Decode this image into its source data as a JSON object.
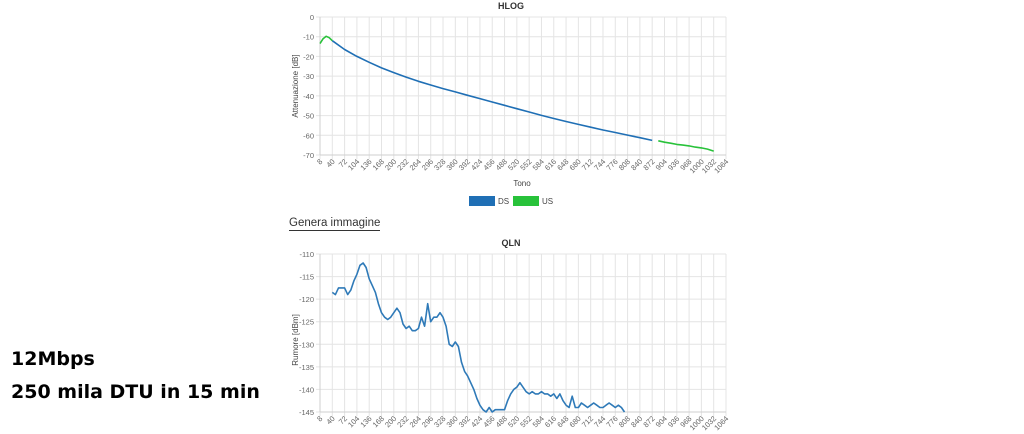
{
  "generate_link": "Genera immagine",
  "caption": {
    "line1": "12Mbps",
    "line2": "250 mila DTU in 15 min"
  },
  "chart_data": [
    {
      "type": "line",
      "title": "HLOG",
      "xlabel": "Tono",
      "ylabel": "Attenuazione [dB]",
      "xlim": [
        8,
        1064
      ],
      "ylim": [
        -70,
        0
      ],
      "x_ticks": [
        8,
        40,
        72,
        104,
        136,
        168,
        200,
        232,
        264,
        296,
        328,
        360,
        392,
        424,
        456,
        488,
        520,
        552,
        584,
        616,
        648,
        680,
        712,
        744,
        776,
        808,
        840,
        872,
        904,
        936,
        968,
        1000,
        1032,
        1064
      ],
      "y_ticks": [
        0,
        -10,
        -20,
        -30,
        -40,
        -50,
        -60,
        -70
      ],
      "legend": "bottom",
      "series": [
        {
          "name": "DS",
          "color": "#1f6fb5",
          "points": [
            [
              40,
              -12
            ],
            [
              72,
              -16.5
            ],
            [
              104,
              -20
            ],
            [
              136,
              -23
            ],
            [
              168,
              -25.8
            ],
            [
              200,
              -28.2
            ],
            [
              232,
              -30.5
            ],
            [
              264,
              -32.6
            ],
            [
              296,
              -34.5
            ],
            [
              328,
              -36.3
            ],
            [
              360,
              -38
            ],
            [
              392,
              -39.7
            ],
            [
              424,
              -41.4
            ],
            [
              456,
              -43.1
            ],
            [
              488,
              -44.8
            ],
            [
              520,
              -46.5
            ],
            [
              552,
              -48.2
            ],
            [
              584,
              -49.9
            ],
            [
              616,
              -51.5
            ],
            [
              648,
              -53
            ],
            [
              680,
              -54.5
            ],
            [
              712,
              -55.9
            ],
            [
              744,
              -57.3
            ],
            [
              776,
              -58.6
            ],
            [
              808,
              -59.9
            ],
            [
              840,
              -61.2
            ],
            [
              872,
              -62.6
            ]
          ]
        },
        {
          "name": "US",
          "color": "#28c23a",
          "points": [
            [
              8,
              -13.5
            ],
            [
              16,
              -11
            ],
            [
              24,
              -9.8
            ],
            [
              32,
              -10.5
            ],
            [
              40,
              -12
            ],
            [
              888,
              -62.8
            ],
            [
              904,
              -63.5
            ],
            [
              920,
              -64
            ],
            [
              936,
              -64.6
            ],
            [
              952,
              -65
            ],
            [
              968,
              -65.4
            ],
            [
              984,
              -66
            ],
            [
              1000,
              -66.4
            ],
            [
              1016,
              -67
            ],
            [
              1032,
              -68
            ]
          ]
        }
      ]
    },
    {
      "type": "line",
      "title": "QLN",
      "xlabel": "",
      "ylabel": "Rumore [dBm]",
      "xlim": [
        8,
        1064
      ],
      "ylim": [
        -145,
        -110
      ],
      "x_ticks": [
        8,
        40,
        72,
        104,
        136,
        168,
        200,
        232,
        264,
        296,
        328,
        360,
        392,
        424,
        456,
        488,
        520,
        552,
        584,
        616,
        648,
        680,
        712,
        744,
        776,
        808,
        840,
        872,
        904,
        936,
        968,
        1000,
        1032,
        1064
      ],
      "y_ticks": [
        -110,
        -115,
        -120,
        -125,
        -130,
        -135,
        -140,
        -145
      ],
      "series": [
        {
          "name": "",
          "color": "#2f7ab8",
          "points": [
            [
              40,
              -118.5
            ],
            [
              48,
              -119
            ],
            [
              56,
              -117.5
            ],
            [
              72,
              -117.5
            ],
            [
              80,
              -119
            ],
            [
              88,
              -118
            ],
            [
              96,
              -116
            ],
            [
              104,
              -114.5
            ],
            [
              112,
              -112.5
            ],
            [
              120,
              -112
            ],
            [
              128,
              -113
            ],
            [
              136,
              -115.5
            ],
            [
              144,
              -117
            ],
            [
              152,
              -118.5
            ],
            [
              160,
              -121
            ],
            [
              168,
              -123
            ],
            [
              176,
              -124
            ],
            [
              184,
              -124.5
            ],
            [
              192,
              -124
            ],
            [
              200,
              -123
            ],
            [
              208,
              -122
            ],
            [
              216,
              -123
            ],
            [
              224,
              -125.5
            ],
            [
              232,
              -126.5
            ],
            [
              240,
              -126
            ],
            [
              248,
              -127
            ],
            [
              256,
              -127
            ],
            [
              264,
              -126.5
            ],
            [
              272,
              -124
            ],
            [
              280,
              -126
            ],
            [
              288,
              -121
            ],
            [
              296,
              -125
            ],
            [
              304,
              -124
            ],
            [
              312,
              -124
            ],
            [
              320,
              -123
            ],
            [
              328,
              -124
            ],
            [
              336,
              -126
            ],
            [
              344,
              -130
            ],
            [
              352,
              -130.5
            ],
            [
              360,
              -129.5
            ],
            [
              368,
              -130.5
            ],
            [
              376,
              -134
            ],
            [
              384,
              -136
            ],
            [
              392,
              -137
            ],
            [
              400,
              -138.5
            ],
            [
              408,
              -140
            ],
            [
              416,
              -142
            ],
            [
              424,
              -143.5
            ],
            [
              432,
              -144.5
            ],
            [
              440,
              -145
            ],
            [
              448,
              -144
            ],
            [
              456,
              -145
            ],
            [
              464,
              -144.5
            ],
            [
              472,
              -144.5
            ],
            [
              480,
              -144.5
            ],
            [
              488,
              -144.5
            ],
            [
              496,
              -142.5
            ],
            [
              504,
              -141
            ],
            [
              512,
              -140
            ],
            [
              520,
              -139.5
            ],
            [
              528,
              -138.5
            ],
            [
              536,
              -139.5
            ],
            [
              544,
              -140.5
            ],
            [
              552,
              -141
            ],
            [
              560,
              -140.5
            ],
            [
              568,
              -141
            ],
            [
              576,
              -141
            ],
            [
              584,
              -140.5
            ],
            [
              592,
              -141
            ],
            [
              600,
              -141
            ],
            [
              608,
              -141.5
            ],
            [
              616,
              -141
            ],
            [
              624,
              -142
            ],
            [
              632,
              -141
            ],
            [
              640,
              -142.5
            ],
            [
              648,
              -143.5
            ],
            [
              656,
              -144
            ],
            [
              664,
              -141.5
            ],
            [
              672,
              -144
            ],
            [
              680,
              -144
            ],
            [
              688,
              -143
            ],
            [
              696,
              -143.5
            ],
            [
              704,
              -144
            ],
            [
              712,
              -143.5
            ],
            [
              720,
              -143
            ],
            [
              728,
              -143.5
            ],
            [
              736,
              -144
            ],
            [
              744,
              -144
            ],
            [
              752,
              -143.5
            ],
            [
              760,
              -143
            ],
            [
              768,
              -143.5
            ],
            [
              776,
              -144
            ],
            [
              784,
              -143.5
            ],
            [
              792,
              -144
            ],
            [
              800,
              -145
            ]
          ]
        }
      ]
    }
  ]
}
